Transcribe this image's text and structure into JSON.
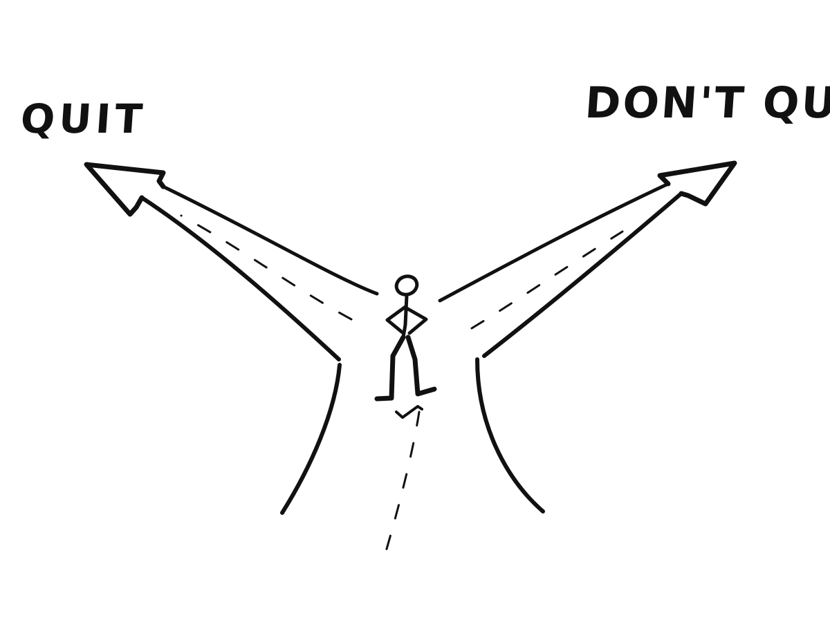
{
  "labels": {
    "left": "QUIT",
    "right": "DON'T QUIT"
  },
  "colors": {
    "ink": "#111111",
    "background": "#ffffff"
  }
}
